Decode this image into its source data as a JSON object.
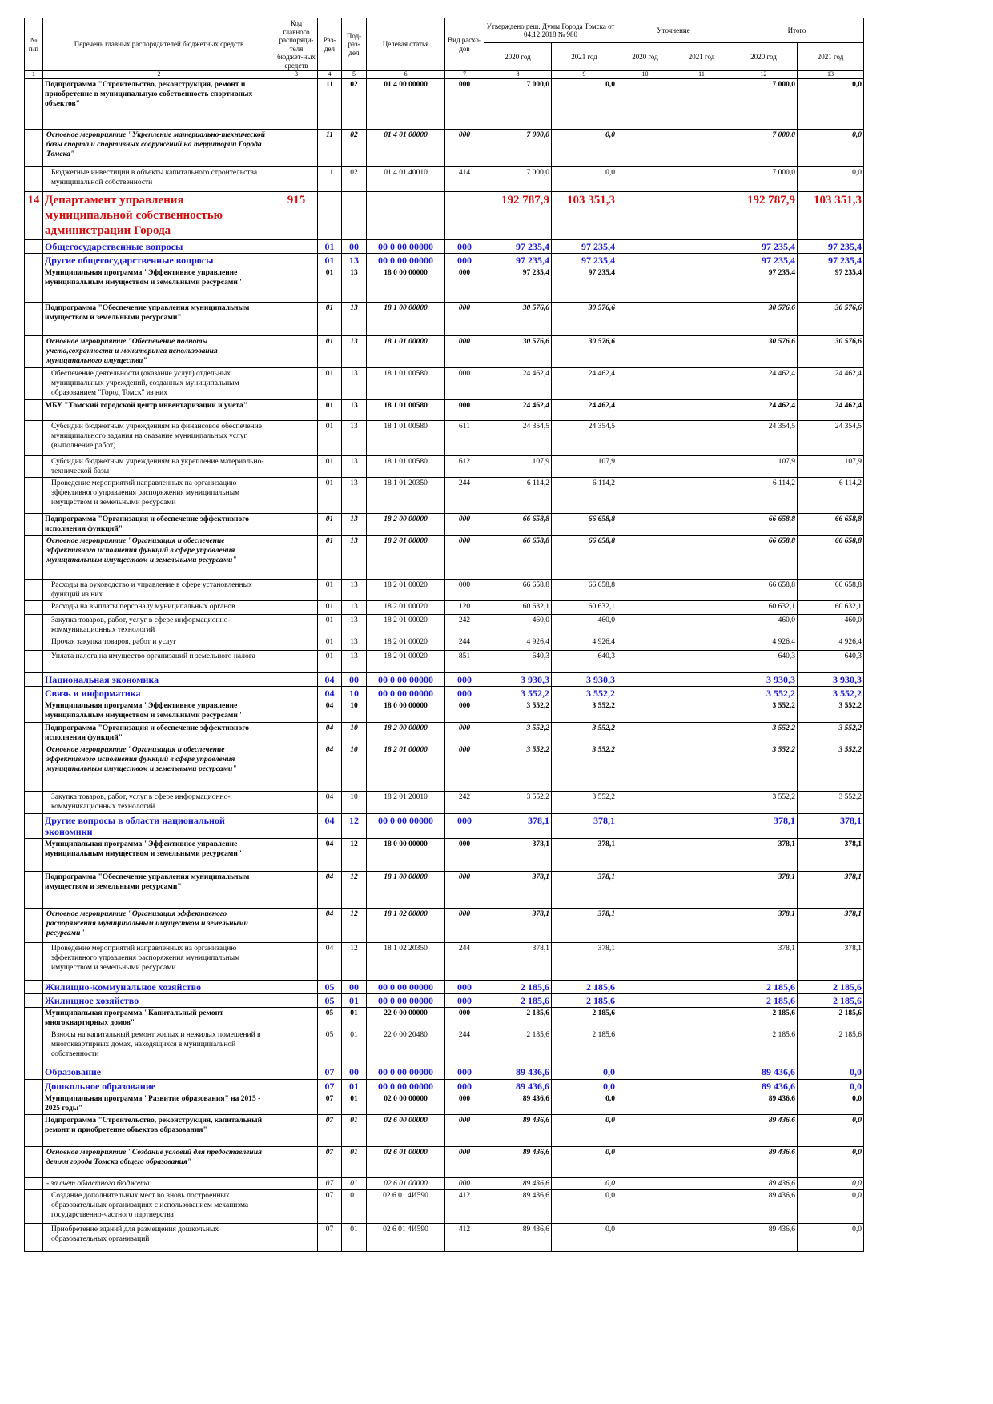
{
  "header": {
    "no": "№ п/п",
    "name": "Перечень главных распорядителей бюджетных средств",
    "code": "Код главного распоряди-теля бюджет-ных средств",
    "section": "Раз-дел",
    "subsection": "Под-раз-дел",
    "target": "Целевая статья",
    "kind": "Вид расхо-дов",
    "approved": "Утверждено реш. Думы Города Томска от 04.12.2018 № 980",
    "clarification": "Уточнение",
    "total": "Итого",
    "years": [
      "2020 год",
      "2021 год",
      "2020 год",
      "2021 год",
      "2020 год",
      "2021 год"
    ],
    "numbers": [
      "1",
      "2",
      "3",
      "4",
      "5",
      "6",
      "7",
      "8",
      "9",
      "10",
      "11",
      "12",
      "13"
    ]
  },
  "table": {
    "rows": [
      {
        "name": "Подпрограмма \"Строительство, реконструкция, ремонт и приобретение в муниципальную собственность спортивных объектов\"",
        "section": "11",
        "subsection": "02",
        "target": "01 4 00 00000",
        "kind": "000",
        "a2020": "7 000,0",
        "a2021": "0,0",
        "t2020": "7 000,0",
        "t2021": "0,0"
      },
      {
        "name": "Основное мероприятие \"Укрепление материально-технической базы спорта и спортивных сооружений на территории Города Томска\"",
        "section": "11",
        "subsection": "02",
        "target": "01 4 01 00000",
        "kind": "000",
        "a2020": "7 000,0",
        "a2021": "0,0",
        "t2020": "7 000,0",
        "t2021": "0,0"
      },
      {
        "name": "Бюджетные инвестиции в объекты капитального строительства муниципальной собственности",
        "section": "11",
        "subsection": "02",
        "target": "01 4 01 40010",
        "kind": "414",
        "a2020": "7 000,0",
        "a2021": "0,0",
        "t2020": "7 000,0",
        "t2021": "0,0"
      },
      {
        "no": "14",
        "name": "Департамент управления муниципальной собственностью администрации Города",
        "code": "915",
        "a2020": "192 787,9",
        "a2021": "103 351,3",
        "t2020": "192 787,9",
        "t2021": "103 351,3"
      },
      {
        "name": "Общегосударственные вопросы",
        "section": "01",
        "subsection": "00",
        "target": "00 0 00 00000",
        "kind": "000",
        "a2020": "97 235,4",
        "a2021": "97 235,4",
        "t2020": "97 235,4",
        "t2021": "97 235,4"
      },
      {
        "name": "Другие общегосударственные вопросы",
        "section": "01",
        "subsection": "13",
        "target": "00 0 00 00000",
        "kind": "000",
        "a2020": "97 235,4",
        "a2021": "97 235,4",
        "t2020": "97 235,4",
        "t2021": "97 235,4"
      },
      {
        "name": "Муниципальная программа \"Эффективное управление муниципальным имуществом и земельными ресурсами\"",
        "section": "01",
        "subsection": "13",
        "target": "18 0 00 00000",
        "kind": "000",
        "a2020": "97 235,4",
        "a2021": "97 235,4",
        "t2020": "97 235,4",
        "t2021": "97 235,4"
      },
      {
        "name": "Подпрограмма \"Обеспечение управления муниципальным имуществом и земельными ресурсами\"",
        "section": "01",
        "subsection": "13",
        "target": "18 1 00 00000",
        "kind": "000",
        "a2020": "30 576,6",
        "a2021": "30 576,6",
        "t2020": "30 576,6",
        "t2021": "30 576,6"
      },
      {
        "name": "Основное мероприятие \"Обеспечение полноты учета,сохранности и мониторинга использования муниципального имущества\"",
        "section": "01",
        "subsection": "13",
        "target": "18 1 01 00000",
        "kind": "000",
        "a2020": "30 576,6",
        "a2021": "30 576,6",
        "t2020": "30 576,6",
        "t2021": "30 576,6"
      },
      {
        "name": "Обеспечение деятельности (оказание услуг) отдельных муниципальных учреждений, созданных муниципальным образованием \"Город Томск\" из них",
        "section": "01",
        "subsection": "13",
        "target": "18 1 01 00580",
        "kind": "000",
        "a2020": "24 462,4",
        "a2021": "24 462,4",
        "t2020": "24 462,4",
        "t2021": "24 462,4"
      },
      {
        "name": "МБУ \"Томский городской центр инвентаризации и учета\"",
        "section": "01",
        "subsection": "13",
        "target": "18 1 01 00580",
        "kind": "000",
        "a2020": "24 462,4",
        "a2021": "24 462,4",
        "t2020": "24 462,4",
        "t2021": "24 462,4"
      },
      {
        "name": "Субсидии бюджетным учреждениям на финансовое обеспечение муниципального задания на оказание муниципальных услуг (выполнение работ)",
        "section": "01",
        "subsection": "13",
        "target": "18 1 01 00580",
        "kind": "611",
        "a2020": "24 354,5",
        "a2021": "24 354,5",
        "t2020": "24 354,5",
        "t2021": "24 354,5"
      },
      {
        "name": "Субсидии бюджетным учреждениям на укрепление материально-технической базы",
        "section": "01",
        "subsection": "13",
        "target": "18 1 01 00580",
        "kind": "612",
        "a2020": "107,9",
        "a2021": "107,9",
        "t2020": "107,9",
        "t2021": "107,9"
      },
      {
        "name": "Проведение мероприятий направленных на организацию эффективного управления распоряжения муниципальным имуществом и земельными ресурсами",
        "section": "01",
        "subsection": "13",
        "target": "18 1 01 20350",
        "kind": "244",
        "a2020": "6 114,2",
        "a2021": "6 114,2",
        "t2020": "6 114,2",
        "t2021": "6 114,2"
      },
      {
        "name": "Подпрограмма \"Организация и обеспечение эффективного исполнения функций\"",
        "section": "01",
        "subsection": "13",
        "target": "18 2 00 00000",
        "kind": "000",
        "a2020": "66 658,8",
        "a2021": "66 658,8",
        "t2020": "66 658,8",
        "t2021": "66 658,8"
      },
      {
        "name": "Основное мероприятие \"Организация и обеспечение эффективного исполнения функций в сфере управления муниципальным имуществом и земельными ресурсами\"",
        "section": "01",
        "subsection": "13",
        "target": "18 2 01 00000",
        "kind": "000",
        "a2020": "66 658,8",
        "a2021": "66 658,8",
        "t2020": "66 658,8",
        "t2021": "66 658,8"
      },
      {
        "name": "Расходы на руководство и управление в сфере установленных функций из них",
        "section": "01",
        "subsection": "13",
        "target": "18 2 01 00020",
        "kind": "000",
        "a2020": "66 658,8",
        "a2021": "66 658,8",
        "t2020": "66 658,8",
        "t2021": "66 658,8"
      },
      {
        "name": "Расходы на выплаты персоналу муниципальных органов",
        "section": "01",
        "subsection": "13",
        "target": "18 2 01 00020",
        "kind": "120",
        "a2020": "60 632,1",
        "a2021": "60 632,1",
        "t2020": "60 632,1",
        "t2021": "60 632,1"
      },
      {
        "name": "Закупка товаров, работ, услуг в сфере информационно-коммуникационных технологий",
        "section": "01",
        "subsection": "13",
        "target": "18 2 01 00020",
        "kind": "242",
        "a2020": "460,0",
        "a2021": "460,0",
        "t2020": "460,0",
        "t2021": "460,0"
      },
      {
        "name": "Прочая закупка товаров, работ и услуг",
        "section": "01",
        "subsection": "13",
        "target": "18 2 01 00020",
        "kind": "244",
        "a2020": "4 926,4",
        "a2021": "4 926,4",
        "t2020": "4 926,4",
        "t2021": "4 926,4"
      },
      {
        "name": "Уплата налога на имущество организаций и земельного налога",
        "section": "01",
        "subsection": "13",
        "target": "18 2 01 00020",
        "kind": "851",
        "a2020": "640,3",
        "a2021": "640,3",
        "t2020": "640,3",
        "t2021": "640,3"
      },
      {
        "name": "Национальная экономика",
        "section": "04",
        "subsection": "00",
        "target": "00 0 00 00000",
        "kind": "000",
        "a2020": "3 930,3",
        "a2021": "3 930,3",
        "t2020": "3 930,3",
        "t2021": "3 930,3"
      },
      {
        "name": "Связь и информатика",
        "section": "04",
        "subsection": "10",
        "target": "00 0 00 00000",
        "kind": "000",
        "a2020": "3 552,2",
        "a2021": "3 552,2",
        "t2020": "3 552,2",
        "t2021": "3 552,2"
      },
      {
        "name": "Муниципальная программа \"Эффективное управление муниципальным имуществом и земельными ресурсами\"",
        "section": "04",
        "subsection": "10",
        "target": "18 0 00 00000",
        "kind": "000",
        "a2020": "3 552,2",
        "a2021": "3 552,2",
        "t2020": "3 552,2",
        "t2021": "3 552,2"
      },
      {
        "name": "Подпрограмма \"Организация и обеспечение эффективного исполнения функций\"",
        "section": "04",
        "subsection": "10",
        "target": "18 2 00 00000",
        "kind": "000",
        "a2020": "3 552,2",
        "a2021": "3 552,2",
        "t2020": "3 552,2",
        "t2021": "3 552,2"
      },
      {
        "name": "Основное мероприятие \"Организация и обеспечение эффективного исполнения функций в сфере управления муниципальным имуществом и земельными ресурсами\"",
        "section": "04",
        "subsection": "10",
        "target": "18 2 01 00000",
        "kind": "000",
        "a2020": "3 552,2",
        "a2021": "3 552,2",
        "t2020": "3 552,2",
        "t2021": "3 552,2"
      },
      {
        "name": "Закупка товаров, работ, услуг в сфере информационно-коммуникационных технологий",
        "section": "04",
        "subsection": "10",
        "target": "18 2 01 20010",
        "kind": "242",
        "a2020": "3 552,2",
        "a2021": "3 552,2",
        "t2020": "3 552,2",
        "t2021": "3 552,2"
      },
      {
        "name": "Другие вопросы в области национальной экономики",
        "section": "04",
        "subsection": "12",
        "target": "00 0 00 00000",
        "kind": "000",
        "a2020": "378,1",
        "a2021": "378,1",
        "t2020": "378,1",
        "t2021": "378,1"
      },
      {
        "name": "Муниципальная программа \"Эффективное управление муниципальным имуществом и земельными ресурсами\"",
        "section": "04",
        "subsection": "12",
        "target": "18 0 00 00000",
        "kind": "000",
        "a2020": "378,1",
        "a2021": "378,1",
        "t2020": "378,1",
        "t2021": "378,1"
      },
      {
        "name": "Подпрограмма \"Обеспечение управления муниципальным имуществом и земельными ресурсами\"",
        "section": "04",
        "subsection": "12",
        "target": "18 1 00 00000",
        "kind": "000",
        "a2020": "378,1",
        "a2021": "378,1",
        "t2020": "378,1",
        "t2021": "378,1"
      },
      {
        "name": "Основное мероприятие \"Организация эффективного распоряжения муниципальным имуществом и земельными ресурсами\"",
        "section": "04",
        "subsection": "12",
        "target": "18 1 02 00000",
        "kind": "000",
        "a2020": "378,1",
        "a2021": "378,1",
        "t2020": "378,1",
        "t2021": "378,1"
      },
      {
        "name": "Проведение мероприятий направленных на организацию эффективного управления распоряжения муниципальным имуществом и земельными ресурсами",
        "section": "04",
        "subsection": "12",
        "target": "18 1 02 20350",
        "kind": "244",
        "a2020": "378,1",
        "a2021": "378,1",
        "t2020": "378,1",
        "t2021": "378,1"
      },
      {
        "name": "Жилищно-коммунальное хозяйство",
        "section": "05",
        "subsection": "00",
        "target": "00 0 00 00000",
        "kind": "000",
        "a2020": "2 185,6",
        "a2021": "2 185,6",
        "t2020": "2 185,6",
        "t2021": "2 185,6"
      },
      {
        "name": "Жилищное хозяйство",
        "section": "05",
        "subsection": "01",
        "target": "00 0 00 00000",
        "kind": "000",
        "a2020": "2 185,6",
        "a2021": "2 185,6",
        "t2020": "2 185,6",
        "t2021": "2 185,6"
      },
      {
        "name": "Муниципальная программа \"Капитальный ремонт многоквартирных домов\"",
        "section": "05",
        "subsection": "01",
        "target": "22 0 00 00000",
        "kind": "000",
        "a2020": "2 185,6",
        "a2021": "2 185,6",
        "t2020": "2 185,6",
        "t2021": "2 185,6"
      },
      {
        "name": "Взносы на капитальный ремонт жилых и нежилых помещений в многоквартирных домах, находящихся в муниципальной собственности",
        "section": "05",
        "subsection": "01",
        "target": "22 0 00 20480",
        "kind": "244",
        "a2020": "2 185,6",
        "a2021": "2 185,6",
        "t2020": "2 185,6",
        "t2021": "2 185,6"
      },
      {
        "name": "Образование",
        "section": "07",
        "subsection": "00",
        "target": "00 0 00 00000",
        "kind": "000",
        "a2020": "89 436,6",
        "a2021": "0,0",
        "t2020": "89 436,6",
        "t2021": "0,0"
      },
      {
        "name": "Дошкольное образование",
        "section": "07",
        "subsection": "01",
        "target": "00 0 00 00000",
        "kind": "000",
        "a2020": "89 436,6",
        "a2021": "0,0",
        "t2020": "89 436,6",
        "t2021": "0,0"
      },
      {
        "name": "Муниципальная программа \"Развитие образования\" на 2015 - 2025 годы\"",
        "section": "07",
        "subsection": "01",
        "target": "02 0 00 00000",
        "kind": "000",
        "a2020": "89 436,6",
        "a2021": "0,0",
        "t2020": "89 436,6",
        "t2021": "0,0"
      },
      {
        "name": "Подпрограмма \"Строительство, реконструкция, капитальный ремонт и приобретение объектов образования\"",
        "section": "07",
        "subsection": "01",
        "target": "02 6 00 00000",
        "kind": "000",
        "a2020": "89 436,6",
        "a2021": "0,0",
        "t2020": "89 436,6",
        "t2021": "0,0"
      },
      {
        "name": "Основное мероприятие \"Создание условий для предоставления детям города Томска общего образования\"",
        "section": "07",
        "subsection": "01",
        "target": "02 6 01 00000",
        "kind": "000",
        "a2020": "89 436,6",
        "a2021": "0,0",
        "t2020": "89 436,6",
        "t2021": "0,0"
      },
      {
        "name": "- за счет областного бюджета",
        "section": "07",
        "subsection": "01",
        "target": "02 6 01 00000",
        "kind": "000",
        "a2020": "89 436,6",
        "a2021": "0,0",
        "t2020": "89 436,6",
        "t2021": "0,0"
      },
      {
        "name": "Создание дополнительных мест во вновь построенных образовательных организациях с использованием механизма государственно-частного партнерства",
        "section": "07",
        "subsection": "01",
        "target": "02 6 01 4И590",
        "kind": "412",
        "a2020": "89 436,6",
        "a2021": "0,0",
        "t2020": "89 436,6",
        "t2021": "0,0"
      },
      {
        "name": "Приобретение зданий для размещения дошкольных образовательных организаций",
        "section": "07",
        "subsection": "01",
        "target": "02 6 01 4И590",
        "kind": "412",
        "a2020": "89 436,6",
        "a2021": "0,0",
        "t2020": "89 436,6",
        "t2021": "0,0"
      }
    ]
  }
}
